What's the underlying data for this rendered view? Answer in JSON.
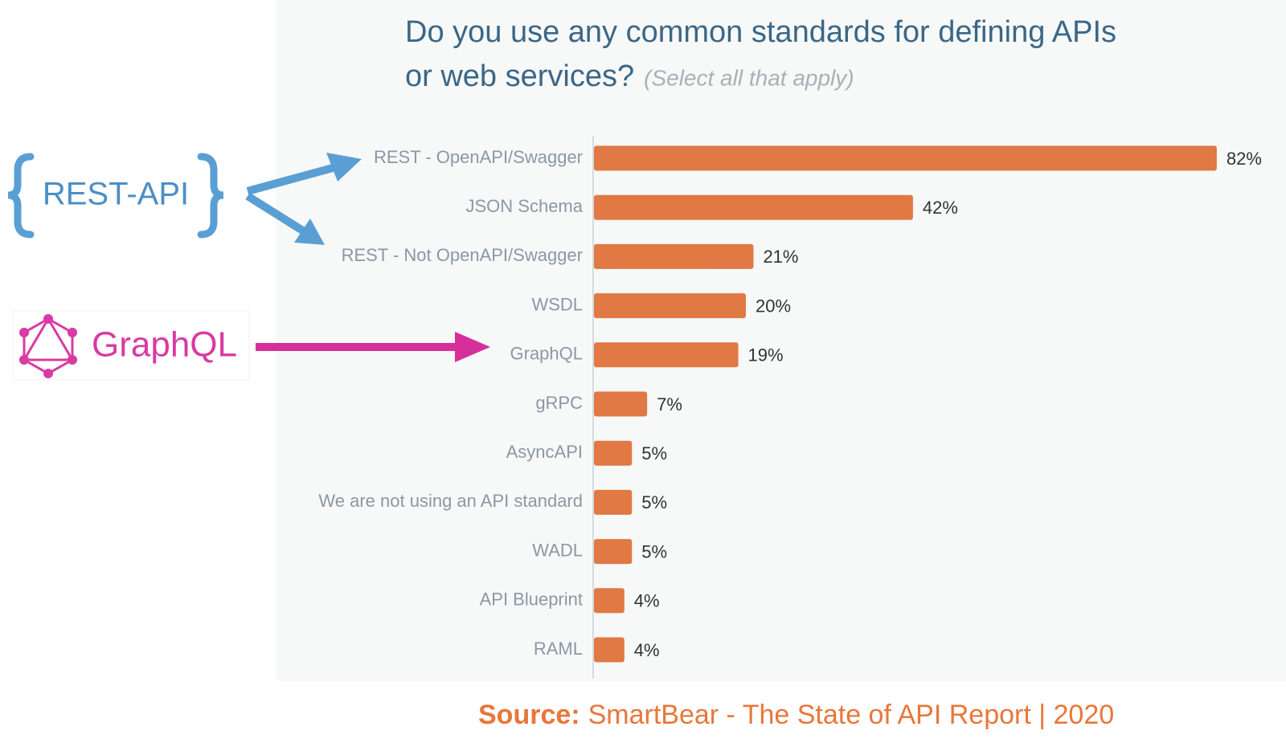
{
  "chart_data": {
    "type": "bar",
    "orientation": "horizontal",
    "title": [
      "Do you use any common standards for defining APIs",
      "or web services?"
    ],
    "subtitle": "(Select all that apply)",
    "categories": [
      "REST - OpenAPI/Swagger",
      "JSON Schema",
      "REST - Not OpenAPI/Swagger",
      "WSDL",
      "GraphQL",
      "gRPC",
      "AsyncAPI",
      "We are not using an API standard",
      "WADL",
      "API Blueprint",
      "RAML"
    ],
    "values": [
      82,
      42,
      21,
      20,
      19,
      7,
      5,
      5,
      5,
      4,
      4
    ],
    "value_labels": [
      "82%",
      "42%",
      "21%",
      "20%",
      "19%",
      "7%",
      "5%",
      "5%",
      "5%",
      "4%",
      "4%"
    ],
    "color": "#e07943"
  },
  "annotations": {
    "rest": "REST-API",
    "graphql": "GraphQL"
  },
  "source": {
    "label": "Source:",
    "text": "SmartBear - The State of API Report | 2020"
  }
}
